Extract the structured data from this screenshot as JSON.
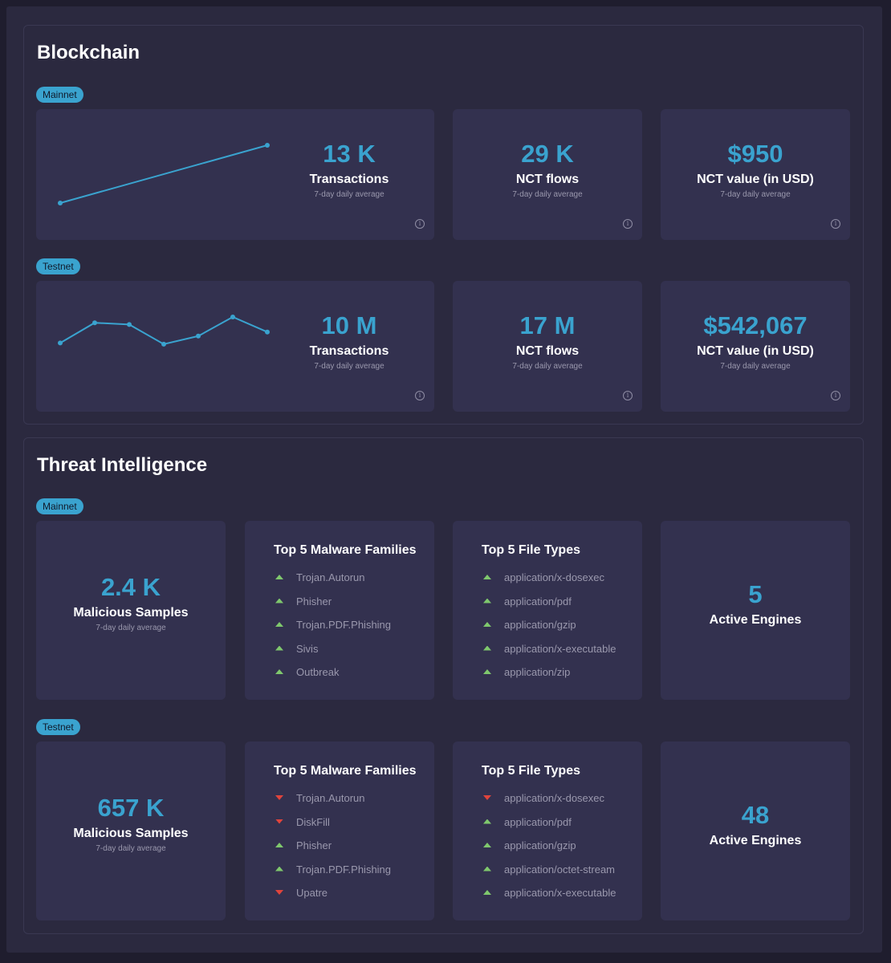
{
  "blockchain": {
    "title": "Blockchain",
    "mainnet": {
      "tag": "Mainnet",
      "sparkline": [
        0,
        1
      ],
      "transactions": {
        "value": "13 K",
        "label": "Transactions",
        "sub": "7-day daily average"
      },
      "nct_flows": {
        "value": "29 K",
        "label": "NCT flows",
        "sub": "7-day daily average"
      },
      "nct_value": {
        "value": "$950",
        "label": "NCT value (in USD)",
        "sub": "7-day daily average"
      }
    },
    "testnet": {
      "tag": "Testnet",
      "sparkline": [
        0.55,
        0.9,
        0.87,
        0.53,
        0.67,
        1.0,
        0.74
      ],
      "transactions": {
        "value": "10 M",
        "label": "Transactions",
        "sub": "7-day daily average"
      },
      "nct_flows": {
        "value": "17 M",
        "label": "NCT flows",
        "sub": "7-day daily average"
      },
      "nct_value": {
        "value": "$542,067",
        "label": "NCT value (in USD)",
        "sub": "7-day daily average"
      }
    }
  },
  "threat": {
    "title": "Threat Intelligence",
    "mainnet": {
      "tag": "Mainnet",
      "samples": {
        "value": "2.4 K",
        "label": "Malicious Samples",
        "sub": "7-day daily average"
      },
      "families_title": "Top 5 Malware Families",
      "families": [
        {
          "name": "Trojan.Autorun",
          "trend": "up"
        },
        {
          "name": "Phisher",
          "trend": "up"
        },
        {
          "name": "Trojan.PDF.Phishing",
          "trend": "up"
        },
        {
          "name": "Sivis",
          "trend": "up"
        },
        {
          "name": "Outbreak",
          "trend": "up"
        }
      ],
      "filetypes_title": "Top 5 File Types",
      "filetypes": [
        {
          "name": "application/x-dosexec",
          "trend": "up"
        },
        {
          "name": "application/pdf",
          "trend": "up"
        },
        {
          "name": "application/gzip",
          "trend": "up"
        },
        {
          "name": "application/x-executable",
          "trend": "up"
        },
        {
          "name": "application/zip",
          "trend": "up"
        }
      ],
      "engines": {
        "value": "5",
        "label": "Active Engines"
      }
    },
    "testnet": {
      "tag": "Testnet",
      "samples": {
        "value": "657 K",
        "label": "Malicious Samples",
        "sub": "7-day daily average"
      },
      "families_title": "Top 5 Malware Families",
      "families": [
        {
          "name": "Trojan.Autorun",
          "trend": "down"
        },
        {
          "name": "DiskFill",
          "trend": "down"
        },
        {
          "name": "Phisher",
          "trend": "up"
        },
        {
          "name": "Trojan.PDF.Phishing",
          "trend": "up"
        },
        {
          "name": "Upatre",
          "trend": "down"
        }
      ],
      "filetypes_title": "Top 5 File Types",
      "filetypes": [
        {
          "name": "application/x-dosexec",
          "trend": "down"
        },
        {
          "name": "application/pdf",
          "trend": "up"
        },
        {
          "name": "application/gzip",
          "trend": "up"
        },
        {
          "name": "application/octet-stream",
          "trend": "up"
        },
        {
          "name": "application/x-executable",
          "trend": "up"
        }
      ],
      "engines": {
        "value": "48",
        "label": "Active Engines"
      }
    }
  },
  "colors": {
    "accent": "#3aa3cf",
    "up": "#7fc86d",
    "down": "#e0443c"
  }
}
